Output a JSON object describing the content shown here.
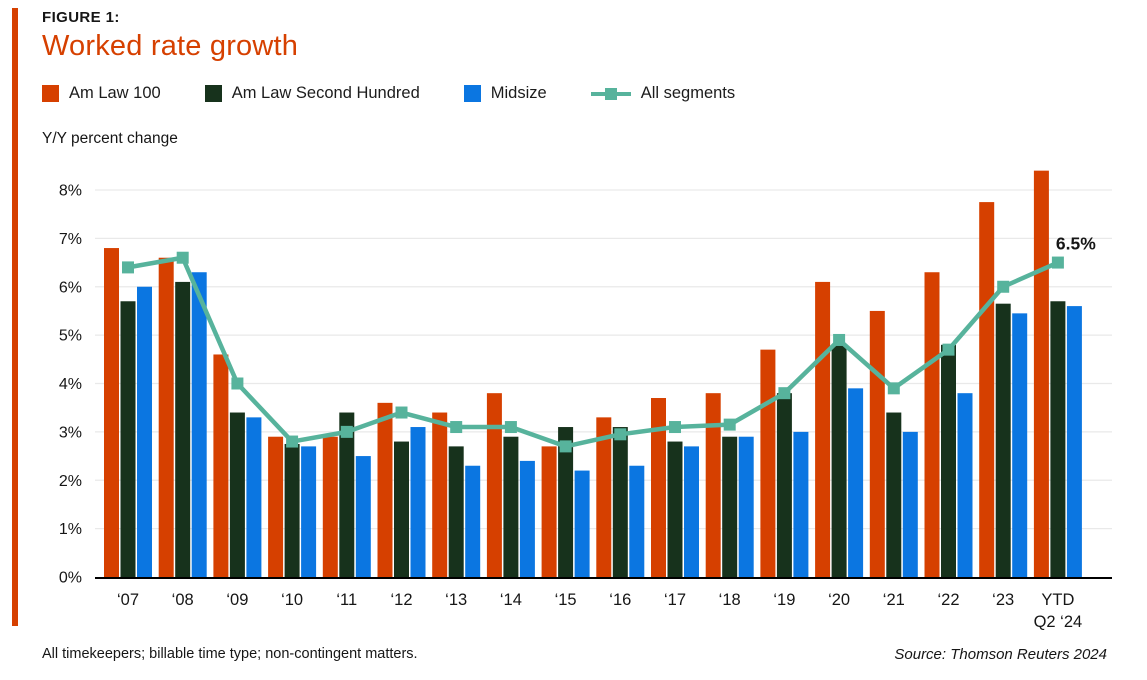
{
  "figure": {
    "kicker": "FIGURE 1:",
    "title": "Worked rate growth",
    "ylabel": "Y/Y percent change",
    "footnote": "All timekeepers; billable time type; non-contingent matters.",
    "source": "Source: Thomson Reuters 2024",
    "accent_color": "#d64000"
  },
  "legend": {
    "items": [
      {
        "label": "Am Law 100",
        "swatch": "square",
        "color": "#d64000"
      },
      {
        "label": "Am Law Second Hundred",
        "swatch": "square",
        "color": "#17321c"
      },
      {
        "label": "Midsize",
        "swatch": "square",
        "color": "#0b76e1"
      },
      {
        "label": "All segments",
        "swatch": "line-with-square-marker",
        "color": "#57b39c"
      }
    ]
  },
  "chart_data": {
    "type": "bar",
    "subtype": "grouped-bars-with-line-overlay",
    "title": "Worked rate growth",
    "xlabel": "",
    "ylabel": "Y/Y percent change",
    "ylim": [
      0,
      8.6
    ],
    "yticks": [
      0,
      1,
      2,
      3,
      4,
      5,
      6,
      7,
      8
    ],
    "ytick_suffix": "%",
    "grid": true,
    "legend_position": "top",
    "categories": [
      "‘07",
      "‘08",
      "‘09",
      "‘10",
      "‘11",
      "‘12",
      "‘13",
      "‘14",
      "‘15",
      "‘16",
      "‘17",
      "‘18",
      "‘19",
      "‘20",
      "‘21",
      "‘22",
      "‘23",
      "YTD\nQ2 ‘24"
    ],
    "series": [
      {
        "name": "Am Law 100",
        "type": "bar",
        "color": "#d64000",
        "values": [
          6.8,
          6.6,
          4.6,
          2.9,
          2.9,
          3.6,
          3.4,
          3.8,
          2.7,
          3.3,
          3.7,
          3.8,
          4.7,
          6.1,
          5.5,
          6.3,
          7.75,
          8.4
        ]
      },
      {
        "name": "Am Law Second Hundred",
        "type": "bar",
        "color": "#17321c",
        "values": [
          5.7,
          6.1,
          3.4,
          2.75,
          3.4,
          2.8,
          2.7,
          2.9,
          3.1,
          3.1,
          2.8,
          2.9,
          3.8,
          4.8,
          3.4,
          4.8,
          5.65,
          5.7
        ]
      },
      {
        "name": "Midsize",
        "type": "bar",
        "color": "#0b76e1",
        "values": [
          6.0,
          6.3,
          3.3,
          2.7,
          2.5,
          3.1,
          2.3,
          2.4,
          2.2,
          2.3,
          2.7,
          2.9,
          3.0,
          3.9,
          3.0,
          3.8,
          5.45,
          5.6
        ]
      },
      {
        "name": "All segments",
        "type": "line",
        "color": "#57b39c",
        "marker": "square",
        "values": [
          6.4,
          6.6,
          4.0,
          2.8,
          3.0,
          3.4,
          3.1,
          3.1,
          2.7,
          2.95,
          3.1,
          3.15,
          3.8,
          4.9,
          3.9,
          4.7,
          6.0,
          6.5
        ],
        "last_point_label": "6.5%"
      }
    ]
  }
}
